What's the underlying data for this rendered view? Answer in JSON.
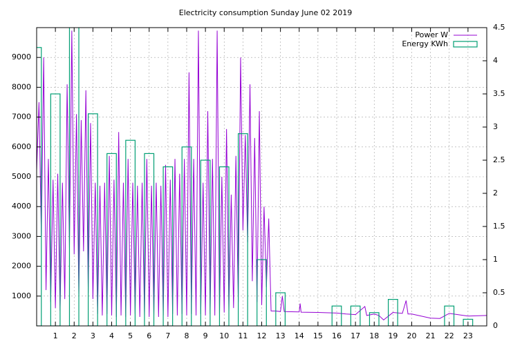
{
  "chart_data": {
    "type": "line",
    "title": "Electricity consumption Sunday June 02 2019",
    "xlim": [
      0,
      24
    ],
    "xticks": [
      1,
      2,
      3,
      4,
      5,
      6,
      7,
      8,
      9,
      10,
      11,
      12,
      13,
      14,
      15,
      16,
      17,
      18,
      19,
      20,
      21,
      22,
      23
    ],
    "ylim": [
      0,
      10000
    ],
    "yticks": [
      1000,
      2000,
      3000,
      4000,
      5000,
      6000,
      7000,
      8000,
      9000
    ],
    "y2lim": [
      0,
      4.5
    ],
    "y2ticks": [
      0,
      0.5,
      1,
      1.5,
      2,
      2.5,
      3,
      3.5,
      4,
      4.5
    ],
    "grid": true,
    "legend": "top-right",
    "series": [
      {
        "name": "Power W",
        "color": "#9400d3",
        "x": [
          0,
          0.125,
          0.25,
          0.375,
          0.5,
          0.625,
          0.75,
          0.875,
          1,
          1.125,
          1.25,
          1.375,
          1.5,
          1.625,
          1.75,
          1.875,
          2,
          2.125,
          2.25,
          2.375,
          2.5,
          2.625,
          2.75,
          2.875,
          3,
          3.125,
          3.25,
          3.375,
          3.5,
          3.625,
          3.75,
          3.875,
          4,
          4.125,
          4.25,
          4.375,
          4.5,
          4.625,
          4.75,
          4.875,
          5,
          5.125,
          5.25,
          5.375,
          5.5,
          5.625,
          5.75,
          5.875,
          6,
          6.125,
          6.25,
          6.375,
          6.5,
          6.625,
          6.75,
          6.875,
          7,
          7.125,
          7.25,
          7.375,
          7.5,
          7.625,
          7.75,
          7.875,
          8,
          8.125,
          8.25,
          8.375,
          8.5,
          8.625,
          8.75,
          8.875,
          9,
          9.125,
          9.25,
          9.375,
          9.5,
          9.625,
          9.75,
          9.875,
          10,
          10.125,
          10.25,
          10.375,
          10.5,
          10.625,
          10.75,
          10.875,
          11,
          11.125,
          11.25,
          11.375,
          11.5,
          11.625,
          11.75,
          11.875,
          12,
          12.125,
          12.25,
          12.375,
          12.5,
          12.75,
          13,
          13.1,
          13.2,
          14,
          14.05,
          14.1,
          15,
          16,
          16.5,
          17,
          17.5,
          17.6,
          18,
          18.25,
          18.5,
          19,
          19.5,
          19.7,
          19.8,
          20,
          21,
          21.5,
          22,
          23,
          24
        ],
        "values": [
          5200,
          7500,
          3000,
          9000,
          1200,
          5600,
          800,
          4900,
          600,
          5100,
          500,
          4800,
          900,
          8100,
          2600,
          9900,
          2400,
          7100,
          1000,
          6900,
          2500,
          7900,
          1100,
          6800,
          900,
          4800,
          400,
          4700,
          350,
          4800,
          400,
          5700,
          350,
          4900,
          300,
          6500,
          350,
          4800,
          300,
          5600,
          350,
          4800,
          400,
          4700,
          300,
          4800,
          350,
          5600,
          300,
          4700,
          350,
          4800,
          300,
          4700,
          350,
          5400,
          300,
          4900,
          400,
          5600,
          350,
          5100,
          400,
          5600,
          350,
          8500,
          400,
          5600,
          350,
          9900,
          400,
          4800,
          350,
          7200,
          400,
          5600,
          350,
          9900,
          400,
          5000,
          450,
          6600,
          500,
          4400,
          600,
          5700,
          800,
          9000,
          3200,
          6400,
          2800,
          8100,
          1500,
          6300,
          800,
          7200,
          700,
          4000,
          1300,
          3600,
          500,
          500,
          480,
          1000,
          480,
          470,
          750,
          460,
          450,
          430,
          400,
          380,
          650,
          350,
          400,
          350,
          200,
          450,
          420,
          850,
          400,
          400,
          260,
          250,
          420,
          330,
          350
        ]
      },
      {
        "name": "Energy KWh",
        "color": "#009e73",
        "axis": "y2",
        "x": [
          0,
          1,
          2,
          3,
          4,
          5,
          6,
          7,
          8,
          9,
          10,
          11,
          12,
          13,
          14,
          15,
          16,
          17,
          18,
          19,
          20,
          21,
          22,
          23
        ],
        "values": [
          4.2,
          3.5,
          4.7,
          3.2,
          2.6,
          2.8,
          2.6,
          2.4,
          2.7,
          2.5,
          2.4,
          2.9,
          1.0,
          0.5,
          null,
          null,
          0.3,
          0.3,
          0.2,
          0.4,
          null,
          null,
          0.3,
          0.1
        ]
      }
    ]
  }
}
